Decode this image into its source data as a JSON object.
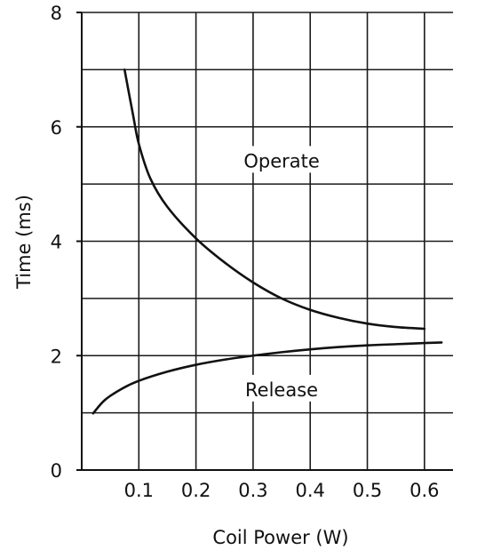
{
  "chart_data": {
    "type": "line",
    "title": "",
    "xlabel": "Coil Power (W)",
    "ylabel": "Time (ms)",
    "xlim": [
      0.0,
      0.65
    ],
    "ylim": [
      0,
      8
    ],
    "x_ticks": [
      0.1,
      0.2,
      0.3,
      0.4,
      0.5,
      0.6
    ],
    "x_tick_labels": [
      "0.1",
      "0.2",
      "0.3",
      "0.4",
      "0.5",
      "0.6"
    ],
    "y_ticks": [
      0,
      2,
      4,
      6,
      8
    ],
    "y_tick_labels": [
      "0",
      "2",
      "4",
      "6",
      "8"
    ],
    "grid": true,
    "grid_x_step": 0.1,
    "grid_y_step": 1,
    "line_color": "#111111",
    "series": [
      {
        "name": "Operate",
        "x": [
          0.075,
          0.09,
          0.1,
          0.12,
          0.15,
          0.2,
          0.25,
          0.3,
          0.35,
          0.4,
          0.45,
          0.5,
          0.55,
          0.6
        ],
        "y": [
          7.0,
          6.2,
          5.7,
          5.1,
          4.6,
          4.05,
          3.63,
          3.28,
          3.0,
          2.8,
          2.66,
          2.56,
          2.5,
          2.47
        ]
      },
      {
        "name": "Release",
        "x": [
          0.02,
          0.04,
          0.07,
          0.1,
          0.15,
          0.2,
          0.25,
          0.3,
          0.35,
          0.4,
          0.45,
          0.5,
          0.55,
          0.6,
          0.63
        ],
        "y": [
          0.99,
          1.22,
          1.42,
          1.56,
          1.72,
          1.84,
          1.93,
          2.0,
          2.06,
          2.11,
          2.15,
          2.18,
          2.2,
          2.22,
          2.23
        ]
      }
    ],
    "annotations": [
      {
        "text": "Operate",
        "x": 0.35,
        "y": 5.4
      },
      {
        "text": "Release",
        "x": 0.35,
        "y": 1.4
      }
    ]
  }
}
